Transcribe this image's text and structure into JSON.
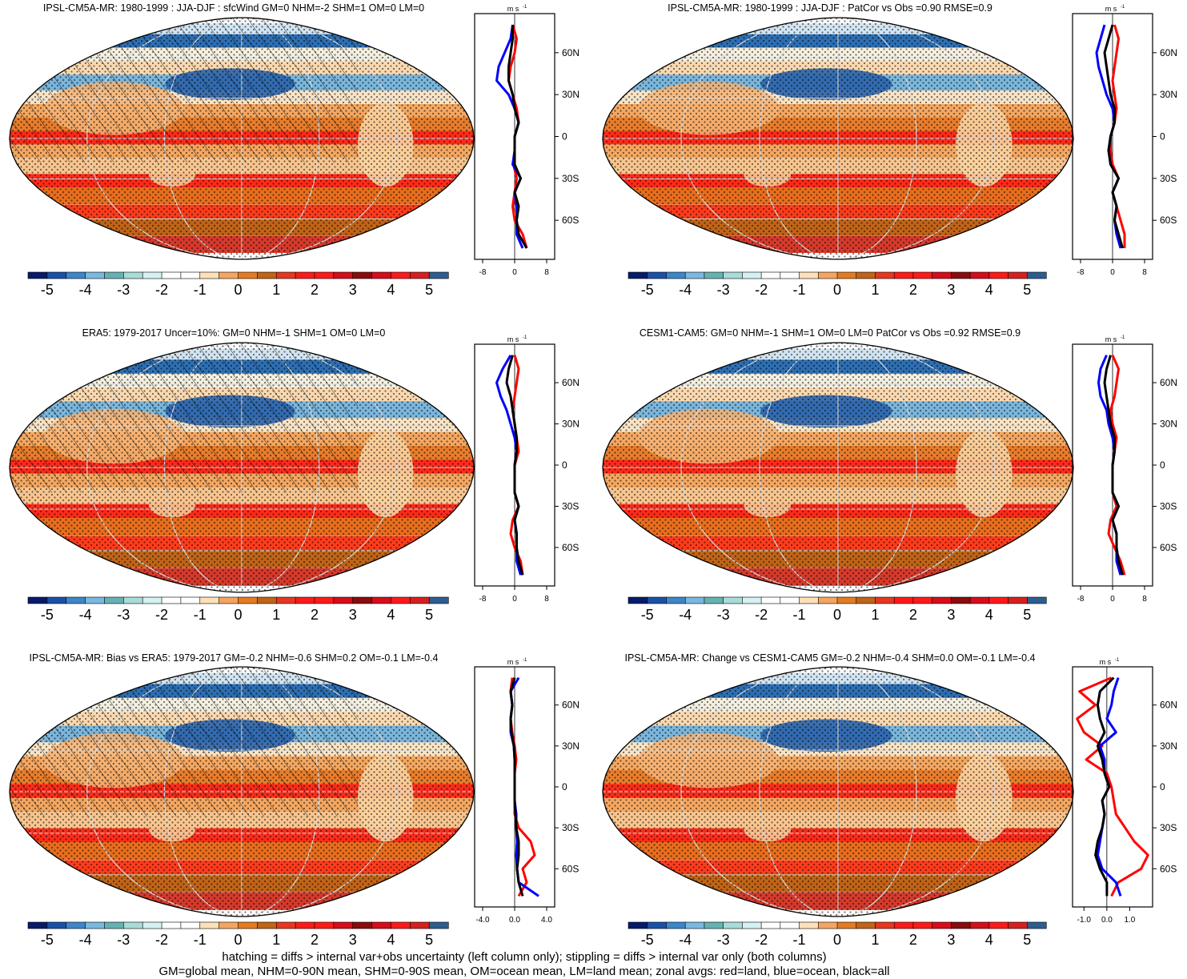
{
  "figure": {
    "footnote_line1": "hatching = diffs > internal var+obs uncertainty (left column only); stippling = diffs > internal var only (both columns)",
    "footnote_line2": "GM=global mean, NHM=0-90N mean, SHM=0-90S mean, OM=ocean mean, LM=land mean; zonal avgs: red=land, blue=ocean, black=all",
    "colors": {
      "land": "#ff0000",
      "ocean": "#0000ff",
      "all": "#000000",
      "continents": "#000000",
      "graticule": "#d9d9d9"
    }
  },
  "colorbar": {
    "colors": [
      "#071b6b",
      "#1a51a8",
      "#3d86c8",
      "#7ab8e0",
      "#66b2b2",
      "#a8dcd8",
      "#d6f1f1",
      "#ffffff",
      "#ffffff",
      "#fde0b8",
      "#f5a55f",
      "#e57b20",
      "#c06418",
      "#e8371f",
      "#ff1a1a",
      "#ff1a1a",
      "#d60d1a",
      "#8a0c0c",
      "#d60d1a",
      "#ff1a1a",
      "#d62020",
      "#2e5d8f"
    ],
    "tick_labels": [
      "-5",
      "-4",
      "-3",
      "-2",
      "-1",
      "0",
      "1",
      "2",
      "3",
      "4",
      "5"
    ]
  },
  "chart_data": [
    {
      "type": "heatmap",
      "title": "IPSL-CM5A-MR: 1980-1999 : JJA-DJF : sfcWind GM=0 NHM=-2 SHM=1 OM=0 LM=0",
      "projection": "Robinson, centered on 180",
      "hatching": true,
      "stippling": true,
      "colorbar_range": [
        -5,
        5
      ],
      "zonal_average": {
        "unit_label": "m s",
        "unit_exp": "-1",
        "xlim": [
          -10,
          10
        ],
        "xticks": [
          -8,
          0,
          8
        ],
        "xticklabels": [
          "-8",
          "0",
          "8"
        ],
        "lat_ticks": [
          "60N",
          "30N",
          "0",
          "30S",
          "60S"
        ],
        "lat": [
          80,
          70,
          60,
          50,
          40,
          30,
          20,
          10,
          0,
          -10,
          -20,
          -30,
          -40,
          -50,
          -60,
          -70,
          -80
        ],
        "land": [
          -0.5,
          0.5,
          0,
          -1,
          -1.5,
          -0.5,
          0.5,
          1,
          0,
          0,
          -0.3,
          0.5,
          0,
          -0.5,
          0,
          2,
          3
        ],
        "ocean": [
          -0.5,
          -1,
          -2.5,
          -4,
          -4.5,
          -1.5,
          0,
          1,
          0,
          0,
          -0.5,
          1.5,
          0,
          0.5,
          0.5,
          0.5,
          2
        ],
        "all": [
          -0.5,
          -0.5,
          -1,
          -1.5,
          -1.5,
          -0.5,
          0,
          1,
          0,
          0,
          0,
          1.5,
          0,
          1,
          0.5,
          1,
          3
        ]
      }
    },
    {
      "type": "heatmap",
      "title": "IPSL-CM5A-MR: 1980-1999 : JJA-DJF : PatCor vs Obs =0.90 RMSE=0.9",
      "projection": "Robinson, centered on 180",
      "hatching": false,
      "stippling": true,
      "colorbar_range": [
        -5,
        5
      ],
      "zonal_average": {
        "unit_label": "m s",
        "unit_exp": "-1",
        "xlim": [
          -10,
          10
        ],
        "xticks": [
          -8,
          0,
          8
        ],
        "xticklabels": [
          "-8",
          "0",
          "8"
        ],
        "lat_ticks": [
          "60N",
          "30N",
          "0",
          "30S",
          "60S"
        ],
        "lat": [
          80,
          70,
          60,
          50,
          40,
          30,
          20,
          10,
          0,
          -10,
          -20,
          -30,
          -40,
          -50,
          -60,
          -70,
          -80
        ],
        "land": [
          0.5,
          1.5,
          1,
          0.5,
          0,
          0.5,
          1,
          0.5,
          -0.5,
          -0.5,
          0,
          1.5,
          0,
          1,
          2,
          3,
          3
        ],
        "ocean": [
          -2,
          -3,
          -4,
          -3.5,
          -2.5,
          -1.5,
          0,
          0.5,
          -0.5,
          -1,
          -0.5,
          1.5,
          0,
          1,
          0.5,
          1,
          2
        ],
        "all": [
          0,
          -1,
          -2,
          -1.5,
          -1,
          -0.5,
          0.5,
          0.5,
          -0.5,
          -1,
          -0.5,
          1.5,
          0,
          1,
          0.5,
          1.5,
          2.5
        ]
      }
    },
    {
      "type": "heatmap",
      "title": "ERA5: 1979-2017 Uncer=10%: GM=0 NHM=-1 SHM=1 OM=0 LM=0",
      "projection": "Robinson, centered on 180",
      "hatching": true,
      "stippling": true,
      "colorbar_range": [
        -5,
        5
      ],
      "zonal_average": {
        "unit_label": "m s",
        "unit_exp": "-1",
        "xlim": [
          -10,
          10
        ],
        "xticks": [
          -8,
          0,
          8
        ],
        "xticklabels": [
          "-8",
          "0",
          "8"
        ],
        "lat_ticks": [
          "60N",
          "30N",
          "0",
          "30S",
          "60S"
        ],
        "lat": [
          80,
          70,
          60,
          50,
          40,
          30,
          20,
          10,
          0,
          -10,
          -20,
          -30,
          -40,
          -50,
          -60,
          -70,
          -80
        ],
        "land": [
          0,
          1,
          0.5,
          0,
          -0.5,
          0,
          0.5,
          1,
          0,
          0,
          0,
          1,
          -0.5,
          -1,
          0,
          1.5,
          2
        ],
        "ocean": [
          -1,
          -3,
          -4.5,
          -3.5,
          -2,
          -1,
          0,
          0.5,
          0,
          0,
          0,
          1,
          0,
          0.5,
          0.5,
          0.5,
          1.5
        ],
        "all": [
          -0.5,
          -1.5,
          -2,
          -1,
          -0.5,
          0,
          0.5,
          0.5,
          0,
          0,
          0,
          1,
          0,
          0.5,
          0.5,
          1,
          2
        ]
      }
    },
    {
      "type": "heatmap",
      "title": "CESM1-CAM5: GM=0 NHM=-1 SHM=1 OM=0 LM=0 PatCor vs Obs =0.92 RMSE=0.9",
      "projection": "Robinson, centered on 180",
      "hatching": false,
      "stippling": true,
      "colorbar_range": [
        -5,
        5
      ],
      "zonal_average": {
        "unit_label": "m s",
        "unit_exp": "-1",
        "xlim": [
          -10,
          10
        ],
        "xticks": [
          -8,
          0,
          8
        ],
        "xticklabels": [
          "-8",
          "0",
          "8"
        ],
        "lat_ticks": [
          "60N",
          "30N",
          "0",
          "30S",
          "60S"
        ],
        "lat": [
          80,
          70,
          60,
          50,
          40,
          30,
          20,
          10,
          0,
          -10,
          -20,
          -30,
          -40,
          -50,
          -60,
          -70,
          -80
        ],
        "land": [
          0,
          1.5,
          1,
          0.5,
          -0.5,
          0,
          1,
          0.5,
          0,
          0,
          0,
          1,
          -0.5,
          -1,
          0.5,
          2,
          3
        ],
        "ocean": [
          -1.5,
          -3,
          -3.5,
          -3,
          -1.5,
          -1,
          0,
          0.5,
          0,
          0,
          0,
          1.5,
          0,
          1,
          1,
          1,
          2
        ],
        "all": [
          -0.5,
          -1.5,
          -2,
          -1.5,
          -1,
          -0.5,
          0.5,
          0.5,
          0,
          0,
          0,
          1.5,
          0,
          1,
          1,
          1.5,
          2.5
        ]
      }
    },
    {
      "type": "heatmap",
      "title": "IPSL-CM5A-MR: Bias vs ERA5: 1979-2017 GM=-0.2 NHM=-0.6 SHM=0.2 OM=-0.1 LM=-0.4",
      "projection": "Robinson, centered on 180",
      "hatching": true,
      "stippling": true,
      "colorbar_range": [
        -5,
        5
      ],
      "zonal_average": {
        "unit_label": "m s",
        "unit_exp": "-1",
        "xlim": [
          -5,
          5
        ],
        "xticks": [
          -4,
          0,
          4
        ],
        "xticklabels": [
          "-4.0",
          "0.0",
          "4.0"
        ],
        "lat_ticks": [
          "60N",
          "30N",
          "0",
          "30S",
          "60S"
        ],
        "lat": [
          80,
          70,
          60,
          50,
          40,
          30,
          20,
          10,
          0,
          -10,
          -20,
          -30,
          -40,
          -50,
          -60,
          -70,
          -80
        ],
        "land": [
          -0.3,
          -0.5,
          -0.3,
          -0.5,
          -0.3,
          0,
          0.2,
          0,
          0,
          0,
          0,
          0.5,
          2,
          2.5,
          1,
          1.5,
          0.5
        ],
        "ocean": [
          0.5,
          -0.5,
          -0.3,
          -0.5,
          -0.5,
          -0.1,
          0,
          0,
          0,
          0,
          0.2,
          0.2,
          0.3,
          0.2,
          0.3,
          0.5,
          3
        ],
        "all": [
          0,
          -0.5,
          -0.3,
          -0.5,
          -0.4,
          -0.1,
          0,
          0,
          0,
          0,
          0.1,
          0.2,
          0.5,
          0.5,
          0.3,
          0.5,
          1
        ]
      }
    },
    {
      "type": "heatmap",
      "title": "IPSL-CM5A-MR: Change vs CESM1-CAM5 GM=-0.2 NHM=-0.4 SHM=0.0 OM=-0.1 LM=-0.4",
      "projection": "Robinson, centered on 180",
      "hatching": false,
      "stippling": true,
      "colorbar_range": [
        -5,
        5
      ],
      "zonal_average": {
        "unit_label": "m s",
        "unit_exp": "-1",
        "xlim": [
          -1.5,
          2
        ],
        "xticks": [
          -1,
          0,
          1
        ],
        "xticklabels": [
          "-1.0",
          "0.0",
          "1.0"
        ],
        "lat_ticks": [
          "60N",
          "30N",
          "0",
          "30S",
          "60S"
        ],
        "lat": [
          80,
          70,
          60,
          50,
          40,
          30,
          20,
          10,
          0,
          -10,
          -20,
          -30,
          -40,
          -50,
          -60,
          -70,
          -80
        ],
        "land": [
          0.2,
          -1.2,
          -0.5,
          -1.3,
          -1,
          -0.2,
          -0.9,
          0,
          0.2,
          0.3,
          0.4,
          0.8,
          1.2,
          1.8,
          1.5,
          0.5,
          0.2
        ],
        "ocean": [
          0.5,
          0.3,
          0.2,
          0,
          0.4,
          -0.3,
          -0.1,
          -0.1,
          0.1,
          -0.2,
          -0.1,
          -0.2,
          -0.3,
          -0.4,
          -0.2,
          0.4,
          0.6
        ],
        "all": [
          0.3,
          -0.3,
          -0.4,
          -0.3,
          -0.1,
          -0.4,
          -0.2,
          -0.1,
          0.1,
          -0.2,
          -0.1,
          -0.2,
          -0.4,
          -0.5,
          -0.3,
          0,
          0
        ]
      }
    }
  ]
}
